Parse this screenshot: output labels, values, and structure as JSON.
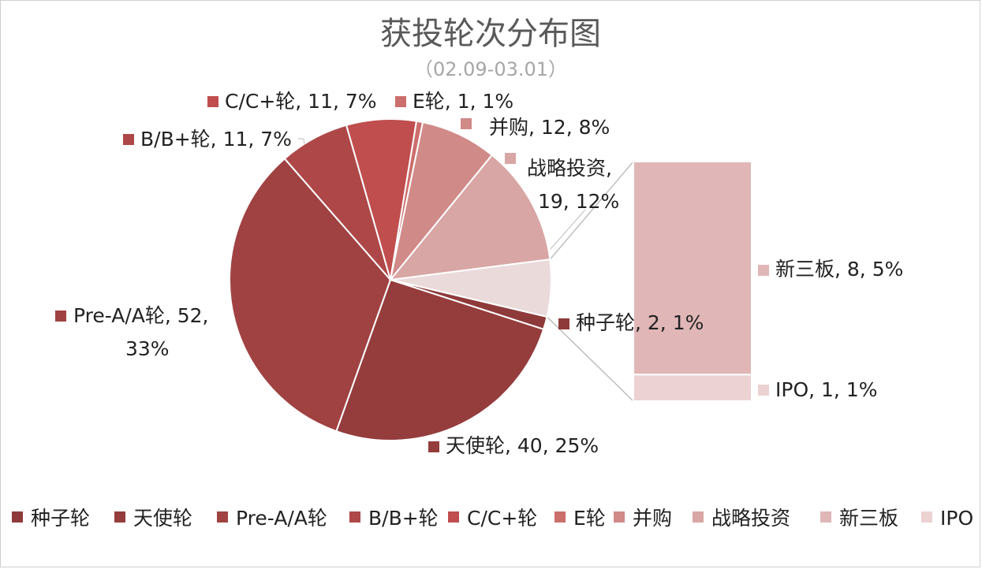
{
  "chart_data": {
    "type": "bar-of-pie",
    "title": "获投轮次分布图",
    "subtitle": "（02.09-03.01）",
    "legend_position": "bottom",
    "categories": [
      "种子轮",
      "天使轮",
      "Pre-A/A轮",
      "B/B+轮",
      "C/C+轮",
      "E轮",
      "并购",
      "战略投资",
      "新三板",
      "IPO"
    ],
    "values": [
      2,
      40,
      52,
      11,
      11,
      1,
      12,
      19,
      8,
      1
    ],
    "percent_labels": [
      "1%",
      "25%",
      "33%",
      "7%",
      "7%",
      "1%",
      "8%",
      "12%",
      "5%",
      "1%"
    ],
    "data_labels": [
      "种子轮, 2, 1%",
      "天使轮, 40, 25%",
      "Pre-A/A轮, 52,|33%",
      "B/B+轮, 11, 7%",
      "C/C+轮, 11, 7%",
      "E轮, 1, 1%",
      "并购, 12, 8%",
      "战略投资,|19, 12%",
      "新三板, 8, 5%",
      "IPO, 1, 1%"
    ],
    "colors": [
      "#8e3a3a",
      "#953c3c",
      "#a04242",
      "#ae4848",
      "#c04e4e",
      "#cc6e6c",
      "#d08a88",
      "#d8a6a4",
      "#e0b6b6",
      "#ecd2d2"
    ],
    "pie_other_color": "#ebdada",
    "bar_of_pie_categories": [
      "新三板",
      "IPO"
    ]
  }
}
